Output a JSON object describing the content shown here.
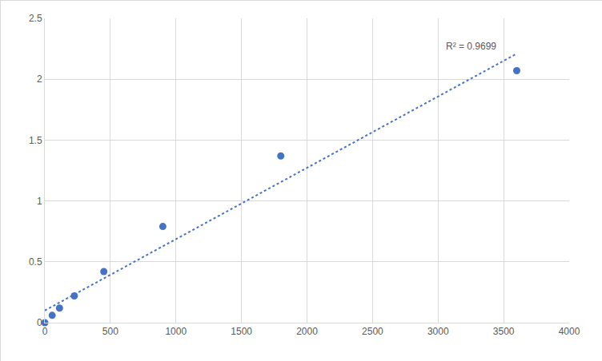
{
  "chart_data": {
    "type": "scatter",
    "x": [
      0,
      56,
      112,
      225,
      450,
      900,
      1800,
      3600
    ],
    "values": [
      0,
      0.06,
      0.12,
      0.22,
      0.42,
      0.79,
      1.37,
      2.07
    ],
    "color": "#4472c4",
    "marker": "circle",
    "trendline": {
      "x": [
        0,
        3600
      ],
      "values": [
        0.1,
        2.21
      ],
      "line_style": "dot"
    },
    "annotations": [
      {
        "text": "R² = 0.9699",
        "x": 3250,
        "y": 2.27
      }
    ],
    "xlim": [
      0,
      4000
    ],
    "xticks": [
      0,
      500,
      1000,
      1500,
      2000,
      2500,
      3000,
      3500,
      4000
    ],
    "ylim": [
      0,
      2.5
    ],
    "yticks": [
      0,
      0.5,
      1,
      1.5,
      2,
      2.5
    ],
    "grid": true
  }
}
